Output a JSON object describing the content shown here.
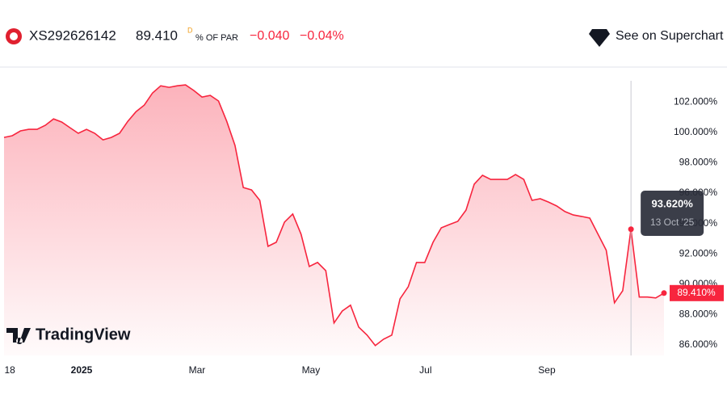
{
  "header": {
    "symbol": "XS292626142",
    "price": "89.410",
    "price_suffix": "D",
    "unit": "% OF PAR",
    "change": "−0.040",
    "change_pct": "−0.04%",
    "link": "See on Superchart"
  },
  "chart_data": {
    "type": "area",
    "color": "#f7253e",
    "watermark": "TradingView",
    "values": [
      99.67,
      99.78,
      100.1,
      100.2,
      100.2,
      100.47,
      100.89,
      100.68,
      100.31,
      99.94,
      100.2,
      99.94,
      99.51,
      99.67,
      99.94,
      100.73,
      101.37,
      101.8,
      102.6,
      103.07,
      102.97,
      103.07,
      103.13,
      102.76,
      102.33,
      102.44,
      102.07,
      100.73,
      99.14,
      96.37,
      96.21,
      95.52,
      92.49,
      92.76,
      94.09,
      94.62,
      93.29,
      91.16,
      91.43,
      90.89,
      87.44,
      88.23,
      88.61,
      87.17,
      86.64,
      85.95,
      86.37,
      86.64,
      89.03,
      89.83,
      91.43,
      91.43,
      92.76,
      93.71,
      93.93,
      94.14,
      94.88,
      96.59,
      97.17,
      96.9,
      96.9,
      96.9,
      97.22,
      96.9,
      95.52,
      95.63,
      95.41,
      95.15,
      94.78,
      94.56,
      94.46,
      94.35,
      93.29,
      92.23,
      88.77,
      89.57,
      93.62,
      89.15,
      89.15,
      89.09,
      89.41
    ],
    "xlim": [
      0,
      80
    ],
    "xticks": [
      {
        "value": 0.7,
        "label": "18"
      },
      {
        "value": 9.4,
        "label": "2025"
      },
      {
        "value": 23.4,
        "label": "Mar"
      },
      {
        "value": 37.2,
        "label": "May"
      },
      {
        "value": 51.1,
        "label": "Jul"
      },
      {
        "value": 65.8,
        "label": "Sep"
      }
    ],
    "ylim": [
      85.3,
      104.2
    ],
    "yticks": [
      {
        "value": 86,
        "label": "86.000%"
      },
      {
        "value": 88,
        "label": "88.000%"
      },
      {
        "value": 90,
        "label": "90.000%"
      },
      {
        "value": 92,
        "label": "92.000%"
      },
      {
        "value": 94,
        "label": "94.000%"
      },
      {
        "value": 96,
        "label": "96.000%"
      },
      {
        "value": 98,
        "label": "98.000%"
      },
      {
        "value": 100,
        "label": "100.000%"
      },
      {
        "value": 102,
        "label": "102.000%"
      }
    ],
    "last_label": "89.410%",
    "tooltip": {
      "value": "93.620%",
      "date": "13 Oct '25"
    }
  }
}
